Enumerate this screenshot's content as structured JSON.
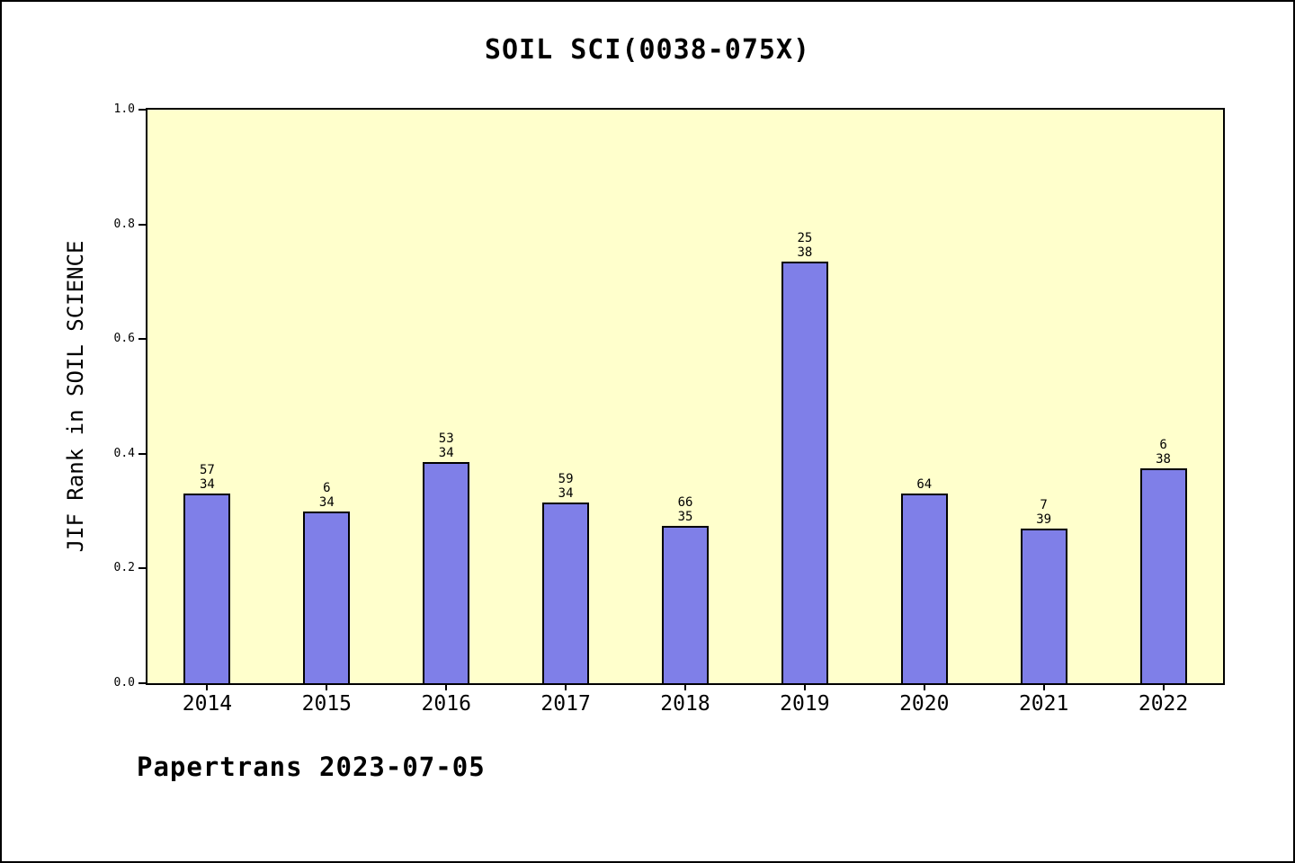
{
  "colors": {
    "plot_background": "#FFFFCC",
    "bar_fill": "#7F7FE8",
    "bar_border": "#000000",
    "axis_color": "#000000"
  },
  "chart_data": {
    "type": "bar",
    "title": "SOIL SCI(0038-075X)",
    "xlabel": "",
    "ylabel": "JIF Rank in SOIL SCIENCE",
    "ylim": [
      0.0,
      1.0
    ],
    "yticks": [
      "0.0",
      "0.2",
      "0.4",
      "0.6",
      "0.8",
      "1.0"
    ],
    "categories": [
      "2014",
      "2015",
      "2016",
      "2017",
      "2018",
      "2019",
      "2020",
      "2021",
      "2022"
    ],
    "values": [
      0.33,
      0.3,
      0.385,
      0.315,
      0.275,
      0.735,
      0.33,
      0.27,
      0.375
    ],
    "bar_labels": [
      [
        "57",
        "34"
      ],
      [
        "6",
        "34"
      ],
      [
        "53",
        "34"
      ],
      [
        "59",
        "34"
      ],
      [
        "66",
        "35"
      ],
      [
        "25",
        "38"
      ],
      [
        "64"
      ],
      [
        "7",
        "39"
      ],
      [
        "6",
        "38"
      ]
    ],
    "grid": false,
    "legend": null,
    "annotation": "Papertrans 2023-07-05"
  }
}
